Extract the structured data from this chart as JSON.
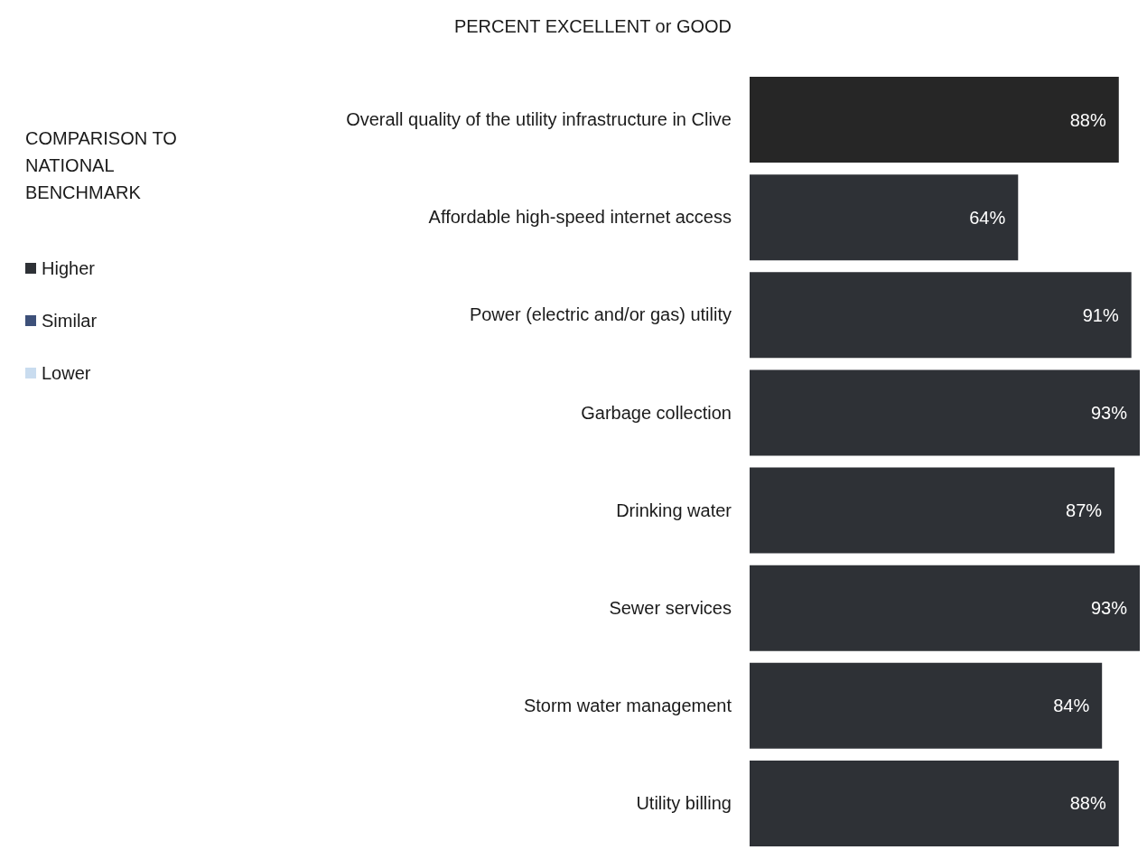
{
  "chart_data": {
    "type": "bar",
    "orientation": "horizontal",
    "stacked": true,
    "title": "PERCENT EXCELLENT or GOOD",
    "legend_title": "COMPARISON TO NATIONAL BENCHMARK",
    "legend": "left",
    "categories": [
      "Overall quality of the utility infrastructure in Clive",
      "Affordable high-speed internet access",
      "Power (electric and/or gas) utility",
      "Garbage collection",
      "Drinking water",
      "Sewer services",
      "Storm water management",
      "Utility billing"
    ],
    "series": [
      {
        "name": "Higher",
        "color": "#2e3136",
        "colors": [
          "#262626",
          "#2e3136",
          "#2e3136",
          "#2e3136",
          "#2e3136",
          "#2e3136",
          "#2e3136",
          "#2e3136"
        ],
        "values": [
          88,
          64,
          91,
          93,
          87,
          93,
          84,
          88
        ],
        "value_labels": [
          "88%",
          "64%",
          "91%",
          "93%",
          "87%",
          "93%",
          "84%",
          "88%"
        ]
      },
      {
        "name": "Similar",
        "color": "#3d5079",
        "values": [
          null,
          null,
          null,
          null,
          null,
          null,
          null,
          null
        ]
      },
      {
        "name": "Lower",
        "color": "#c9dcef",
        "values": [
          null,
          null,
          null,
          null,
          null,
          null,
          null,
          null
        ]
      }
    ]
  }
}
